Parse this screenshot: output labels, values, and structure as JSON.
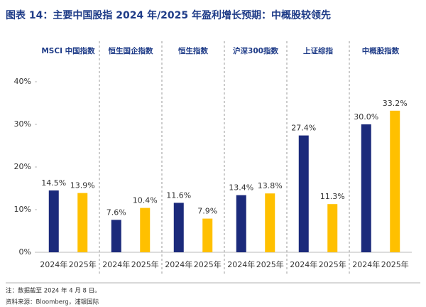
{
  "chart_data": {
    "type": "bar",
    "title": "图表 14：主要中国股指 2024 年/2025 年盈利增长预期：中概股较领先",
    "categories": [
      "MSCI 中国指数",
      "恒生国企指数",
      "恒生指数",
      "沪深300指数",
      "上证综指",
      "中概股指数"
    ],
    "series": [
      {
        "name": "2024年",
        "color": "#1b2a7b",
        "values": [
          14.5,
          7.6,
          11.6,
          13.4,
          27.4,
          30.0
        ],
        "value_labels": [
          "14.5%",
          "7.6%",
          "11.6%",
          "13.4%",
          "27.4%",
          "30.0%"
        ]
      },
      {
        "name": "2025年",
        "color": "#ffc000",
        "values": [
          13.9,
          10.4,
          7.9,
          13.8,
          11.3,
          33.2
        ],
        "value_labels": [
          "13.9%",
          "10.4%",
          "7.9%",
          "13.8%",
          "11.3%",
          "33.2%"
        ]
      }
    ],
    "ylim": [
      0,
      40
    ],
    "yticks": [
      {
        "value": 0,
        "label": "0%"
      },
      {
        "value": 10,
        "label": "10%"
      },
      {
        "value": 20,
        "label": "20%"
      },
      {
        "value": 30,
        "label": "30%"
      },
      {
        "value": 40,
        "label": "40%"
      }
    ],
    "notes": [
      "注：数据截至 2024 年 4 月 8 日。",
      "资料来源：Bloomberg，浦银国际"
    ]
  }
}
